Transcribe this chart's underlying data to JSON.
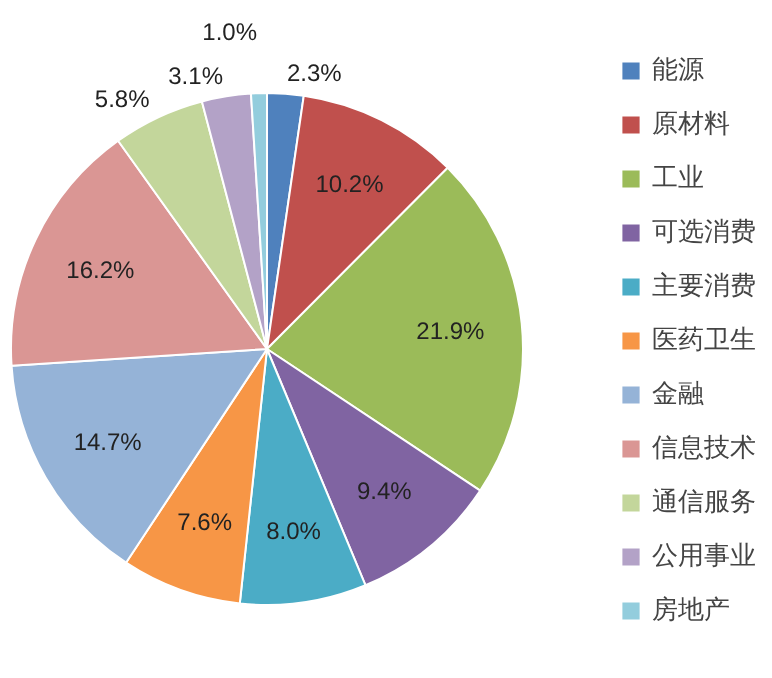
{
  "chart_data": {
    "type": "pie",
    "categories": [
      "能源",
      "原材料",
      "工业",
      "可选消费",
      "主要消费",
      "医药卫生",
      "金融",
      "信息技术",
      "通信服务",
      "公用事业",
      "房地产"
    ],
    "values": [
      2.3,
      10.2,
      21.9,
      9.4,
      8.0,
      7.6,
      14.7,
      16.2,
      5.8,
      3.1,
      1.0
    ],
    "value_labels": [
      "2.3%",
      "10.2%",
      "21.9%",
      "9.4%",
      "8.0%",
      "7.6%",
      "14.7%",
      "16.2%",
      "5.8%",
      "3.1%",
      "1.0%"
    ],
    "colors": [
      "#4f81bd",
      "#c0504d",
      "#9bbb59",
      "#8064a2",
      "#4bacc6",
      "#f79646",
      "#95b3d7",
      "#da9694",
      "#c3d69b",
      "#b3a2c7",
      "#93cddd"
    ],
    "legend": "right"
  }
}
